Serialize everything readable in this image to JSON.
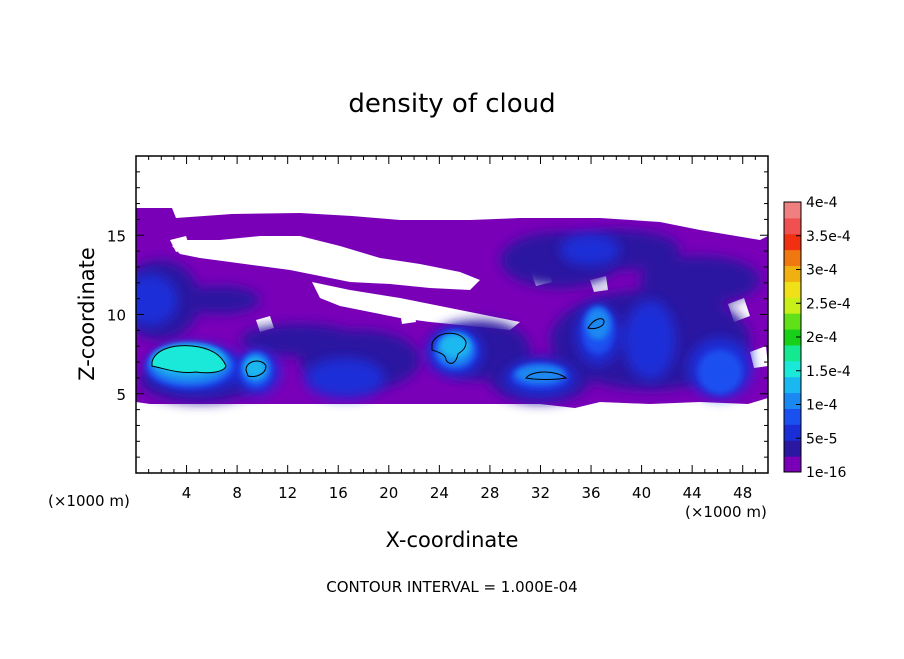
{
  "chart_data": {
    "type": "heatmap",
    "title": "density of cloud",
    "xlabel": "X-coordinate",
    "ylabel": "Z-coordinate",
    "x_unit": "(×1000 m)",
    "x_unit_secondary": "(×1000 m)",
    "xlim": [
      0,
      50
    ],
    "ylim": [
      0,
      20
    ],
    "x_ticks": [
      4,
      8,
      12,
      16,
      20,
      24,
      28,
      32,
      36,
      40,
      44,
      48
    ],
    "y_ticks": [
      5,
      10,
      15
    ],
    "note": "CONTOUR INTERVAL = 1.000E-04",
    "colorbar": {
      "labels": [
        "1e-16",
        "5e-5",
        "1e-4",
        "1.5e-4",
        "2e-4",
        "2.5e-4",
        "3e-4",
        "3.5e-4",
        "4e-4"
      ],
      "levels": [
        1e-16,
        2.5e-05,
        5e-05,
        7.5e-05,
        0.0001,
        0.000125,
        0.00015,
        0.000175,
        0.0002,
        0.000225,
        0.00025,
        0.000275,
        0.0003,
        0.000325,
        0.00035,
        0.000375,
        0.0004
      ],
      "colors": [
        "#7a00b8",
        "#2a18a0",
        "#1a2ed8",
        "#1a50f0",
        "#1a88f0",
        "#1ab8f0",
        "#1ae8d8",
        "#14e890",
        "#18d018",
        "#60e018",
        "#c8f018",
        "#f0e018",
        "#f0b010",
        "#f07810",
        "#f03010",
        "#f05050",
        "#f08080"
      ]
    },
    "cloud_bands": [
      {
        "x": [
          0,
          50
        ],
        "z": [
          4.6,
          16.3
        ],
        "density": "1e-16"
      }
    ],
    "cloud_cores": [
      {
        "center_x": 4,
        "center_z": 7.2,
        "peak_density": 0.00015
      },
      {
        "center_x": 9.5,
        "center_z": 6.8,
        "peak_density": 0.00013
      },
      {
        "center_x": 25,
        "center_z": 8.2,
        "peak_density": 0.00013
      },
      {
        "center_x": 33,
        "center_z": 6.2,
        "peak_density": 0.00012
      },
      {
        "center_x": 36.5,
        "center_z": 9.8,
        "peak_density": 0.00011
      },
      {
        "center_x": 40.5,
        "center_z": 8.0,
        "peak_density": 0.0001
      },
      {
        "center_x": 45,
        "center_z": 6.5,
        "peak_density": 0.0001
      },
      {
        "center_x": 1,
        "center_z": 11.0,
        "peak_density": 8e-05
      },
      {
        "center_x": 18,
        "center_z": 6.2,
        "peak_density": 8e-05
      },
      {
        "center_x": 36,
        "center_z": 14.5,
        "peak_density": 7e-05
      }
    ]
  }
}
